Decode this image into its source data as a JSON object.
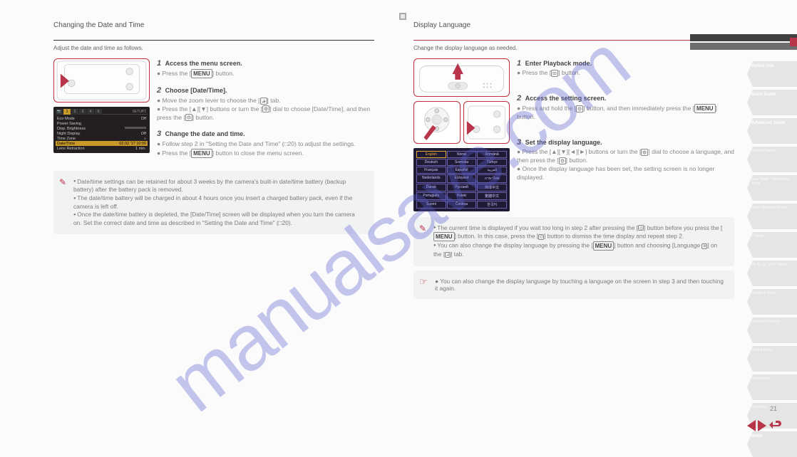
{
  "watermark": "manualsave.com",
  "left": {
    "title": "Changing the Date and Time",
    "subtitle": "Adjust the date and time as follows.",
    "step1_num": "1",
    "step1_head": "Access the menu screen.",
    "step1_body_a": "Press the [",
    "step1_body_btn": "MENU",
    "step1_body_b": "] button.",
    "step2_num": "2",
    "step2_head": "Choose [Date/Time].",
    "step2_l1a": "Move the zoom lever to choose the [",
    "step2_l1b": "] tab.",
    "step2_l2a": "Press the [▲][▼] buttons or turn the [",
    "step2_l2b": "] dial to choose [Date/Time], and then press the [",
    "step2_l2c": "] button.",
    "step3_num": "3",
    "step3_head": "Change the date and time.",
    "step3_l1": "Follow step 2 in \"Setting the Date and Time\" (□20) to adjust the settings.",
    "step3_l2a": "Press the [",
    "step3_l2_btn": "MENU",
    "step3_l2b": "] button to close the menu screen.",
    "note_items": [
      "Date/time settings can be retained for about 3 weeks by the camera's built-in date/time battery (backup battery) after the battery pack is removed.",
      "The date/time battery will be charged in about 4 hours once you insert a charged battery pack, even if the camera is left off.",
      "Once the date/time battery is depleted, the [Date/Time] screen will be displayed when you turn the camera on. Set the correct date and time as described in \"Setting the Date and Time\" (□20)."
    ],
    "lcd": {
      "header_right": "SETUP2",
      "rows": [
        {
          "l": "Eco Mode",
          "r": "Off"
        },
        {
          "l": "Power Saving",
          "r": ""
        },
        {
          "l": "Disp. Brightness",
          "r": ""
        },
        {
          "l": "Night Display",
          "r": "Off"
        },
        {
          "l": "Time Zone",
          "r": "⌂"
        }
      ],
      "hl": {
        "l": "Date/Time",
        "r": "02.02.'17 10:00"
      },
      "last": {
        "l": "Lens Retraction",
        "r": "1 min."
      }
    }
  },
  "right": {
    "title": "Display Language",
    "subtitle": "Change the display language as needed.",
    "step1_num": "1",
    "step1_head": "Enter Playback mode.",
    "step1_body_a": "Press the [",
    "step1_body_b": "] button.",
    "step2_num": "2",
    "step2_head": "Access the setting screen.",
    "step2_l1a": "Press and hold the [",
    "step2_l1b": "] button, and then immediately press the [",
    "step2_l1_btn": "MENU",
    "step2_l1c": "] button.",
    "step3_num": "3",
    "step3_head": "Set the display language.",
    "step3_l1a": "Press the [▲][▼][◄][►] buttons or turn the [",
    "step3_l1b": "] dial to choose a language, and then press the [",
    "step3_l1c": "] button.",
    "step3_l2": "Once the display language has been set, the setting screen is no longer displayed.",
    "note_items": [
      "The current time is displayed if you wait too long in step 2 after pressing the [ ] button before you press the [MENU] button. In this case, press the [ ] button to dismiss the time display and repeat step 2.",
      "You can also change the display language by pressing the [MENU] button and choosing [Language ] on the [ ] tab."
    ],
    "note_btn1": "MENU",
    "note_btn2": "MENU",
    "link_text": "You can also change the display language by touching a language on the screen in step 3 and then touching it again.",
    "langs": [
      [
        "English",
        "Norsk",
        "Română"
      ],
      [
        "Deutsch",
        "Svenska",
        "Türkçe"
      ],
      [
        "Français",
        "Español",
        "العربية"
      ],
      [
        "Nederlands",
        "Ελληνικά",
        "ภาษาไทย"
      ],
      [
        "Dansk",
        "Русский",
        "简体中文"
      ],
      [
        "Português",
        "Polski",
        "繁體中文"
      ],
      [
        "Suomi",
        "Čeština",
        "한국어"
      ]
    ]
  },
  "sidebar": [
    {
      "t1": "Before Use",
      "t2": ""
    },
    {
      "t1": "Basic Guide",
      "t2": ""
    },
    {
      "t1": "Advanced Guide",
      "t2": ""
    },
    {
      "t1": "",
      "t2": "Camera Basics"
    },
    {
      "t1": "",
      "t2": "Auto Mode / Hybrid Auto Mode"
    },
    {
      "t1": "",
      "t2": "Other Shooting Modes"
    },
    {
      "t1": "",
      "t2": "P Mode"
    },
    {
      "t1": "",
      "t2": "Tv, Av, M, and C Mode"
    },
    {
      "t1": "",
      "t2": "Playback Mode"
    },
    {
      "t1": "",
      "t2": "Wireless Features"
    },
    {
      "t1": "",
      "t2": "Setting Menu"
    },
    {
      "t1": "",
      "t2": "Accessories"
    },
    {
      "t1": "",
      "t2": "Appendix"
    },
    {
      "t1": "Index",
      "t2": ""
    }
  ],
  "page_number": "21",
  "colors": {
    "accent": "#b9364a"
  }
}
